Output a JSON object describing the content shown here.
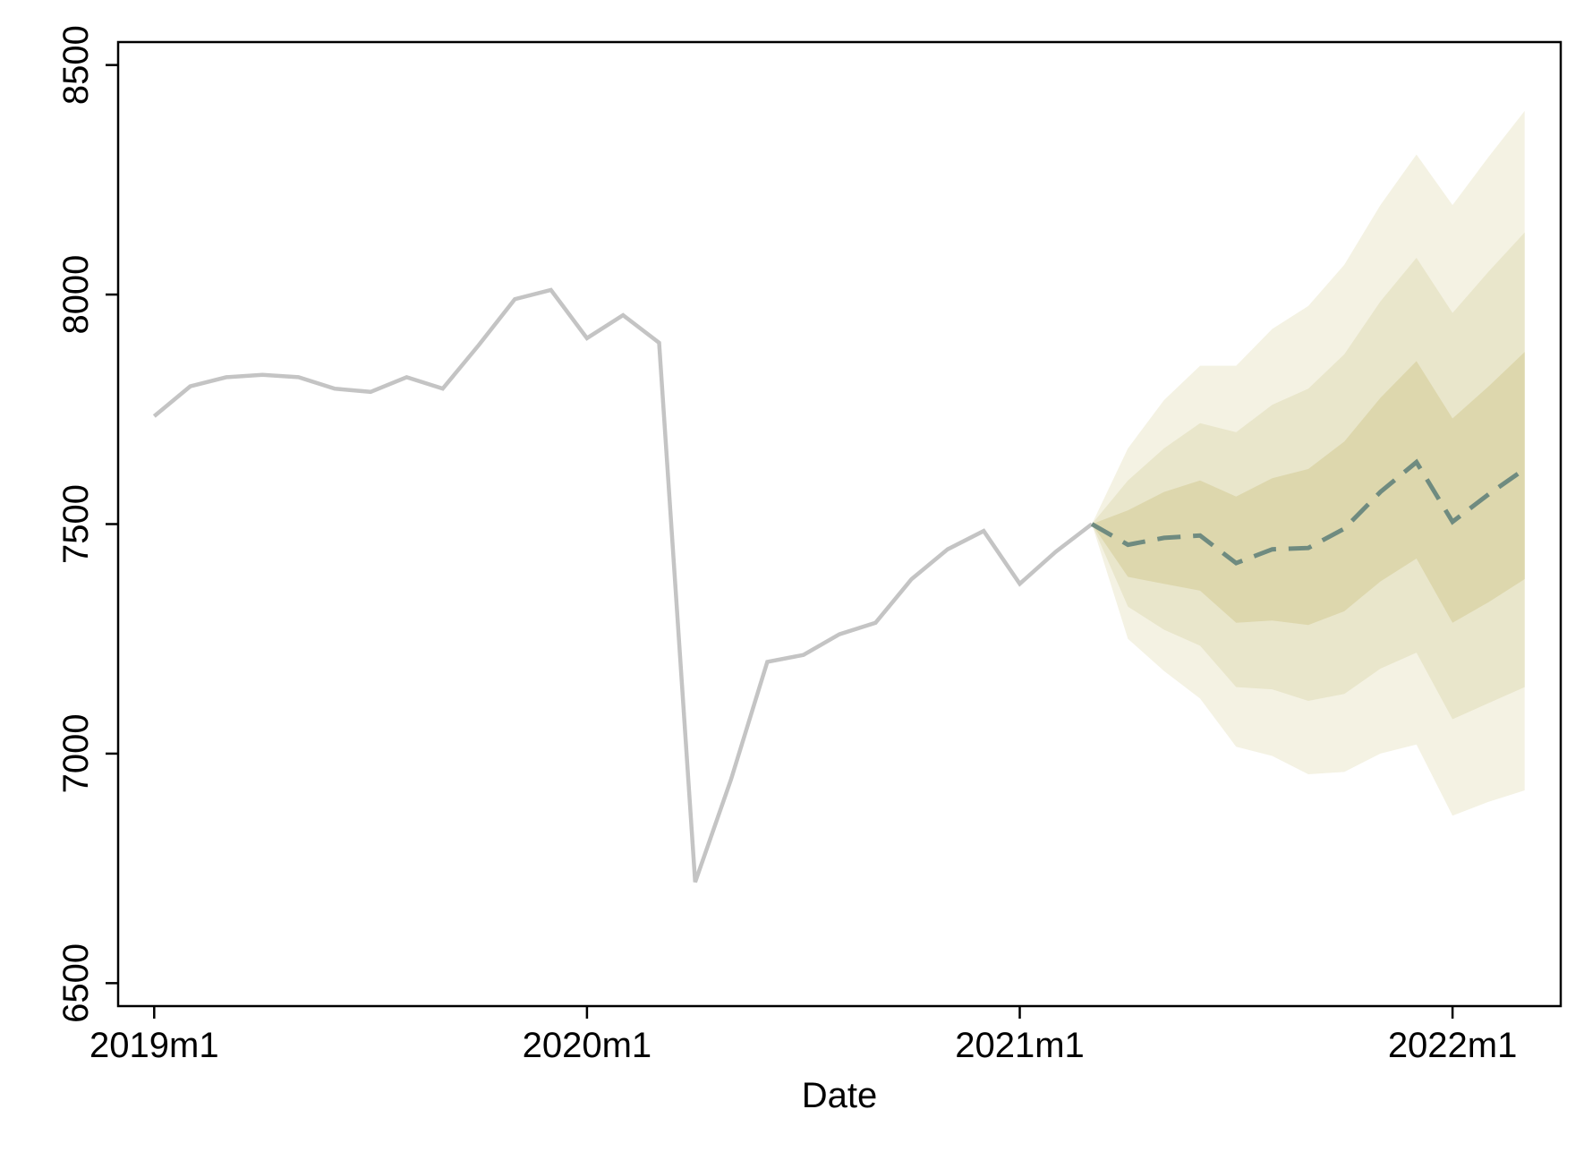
{
  "chart_data": {
    "type": "line",
    "title": "",
    "xlabel": "Date",
    "ylabel": "",
    "xlim": [
      "2018m12",
      "2022m4"
    ],
    "ylim": [
      6450,
      8550
    ],
    "x_ticks": [
      "2019m1",
      "2020m1",
      "2021m1",
      "2022m1"
    ],
    "y_ticks": [
      6500,
      7000,
      7500,
      8000,
      8500
    ],
    "grid": false,
    "legend": "none",
    "colors": {
      "history": "#c4c4c4",
      "forecast": "#6f8b80",
      "band_outer": "#f4f2e3",
      "band_middle": "#e9e6cb",
      "band_inner": "#ddd7ad"
    },
    "series": [
      {
        "style": "solid",
        "x": [
          "2019m1",
          "2019m2",
          "2019m3",
          "2019m4",
          "2019m5",
          "2019m6",
          "2019m7",
          "2019m8",
          "2019m9",
          "2019m10",
          "2019m11",
          "2019m12",
          "2020m1",
          "2020m2",
          "2020m3",
          "2020m4",
          "2020m5",
          "2020m6",
          "2020m7",
          "2020m8",
          "2020m9",
          "2020m10",
          "2020m11",
          "2020m12",
          "2021m1",
          "2021m2",
          "2021m3"
        ],
        "values": [
          7735,
          7800,
          7820,
          7825,
          7820,
          7795,
          7788,
          7820,
          7795,
          7890,
          7990,
          8010,
          7905,
          7955,
          7895,
          6720,
          6945,
          7200,
          7215,
          7260,
          7285,
          7380,
          7445,
          7485,
          7370,
          7440,
          7500
        ]
      },
      {
        "style": "dashed",
        "x": [
          "2021m3",
          "2021m4",
          "2021m5",
          "2021m6",
          "2021m7",
          "2021m8",
          "2021m9",
          "2021m10",
          "2021m11",
          "2021m12",
          "2022m1",
          "2022m2",
          "2022m3"
        ],
        "values": [
          7500,
          7455,
          7470,
          7475,
          7415,
          7445,
          7448,
          7490,
          7570,
          7635,
          7505,
          7565,
          7620
        ]
      }
    ],
    "bands": [
      {
        "level": "outer",
        "x": [
          "2021m3",
          "2021m4",
          "2021m5",
          "2021m6",
          "2021m7",
          "2021m8",
          "2021m9",
          "2021m10",
          "2021m11",
          "2021m12",
          "2022m1",
          "2022m2",
          "2022m3"
        ],
        "upper": [
          7500,
          7665,
          7770,
          7845,
          7845,
          7925,
          7975,
          8065,
          8195,
          8305,
          8195,
          8300,
          8400
        ],
        "lower": [
          7500,
          7250,
          7180,
          7120,
          7015,
          6995,
          6955,
          6960,
          7000,
          7020,
          6865,
          6895,
          6920
        ]
      },
      {
        "level": "middle",
        "x": [
          "2021m3",
          "2021m4",
          "2021m5",
          "2021m6",
          "2021m7",
          "2021m8",
          "2021m9",
          "2021m10",
          "2021m11",
          "2021m12",
          "2022m1",
          "2022m2",
          "2022m3"
        ],
        "upper": [
          7500,
          7595,
          7665,
          7720,
          7700,
          7760,
          7795,
          7870,
          7985,
          8080,
          7960,
          8050,
          8135
        ],
        "lower": [
          7500,
          7320,
          7270,
          7235,
          7145,
          7140,
          7115,
          7130,
          7185,
          7220,
          7075,
          7110,
          7145
        ]
      },
      {
        "level": "inner",
        "x": [
          "2021m3",
          "2021m4",
          "2021m5",
          "2021m6",
          "2021m7",
          "2021m8",
          "2021m9",
          "2021m10",
          "2021m11",
          "2021m12",
          "2022m1",
          "2022m2",
          "2022m3"
        ],
        "upper": [
          7500,
          7530,
          7570,
          7595,
          7560,
          7600,
          7620,
          7680,
          7775,
          7855,
          7730,
          7800,
          7875
        ],
        "lower": [
          7500,
          7385,
          7370,
          7355,
          7285,
          7290,
          7280,
          7310,
          7375,
          7425,
          7285,
          7330,
          7380
        ]
      }
    ]
  }
}
